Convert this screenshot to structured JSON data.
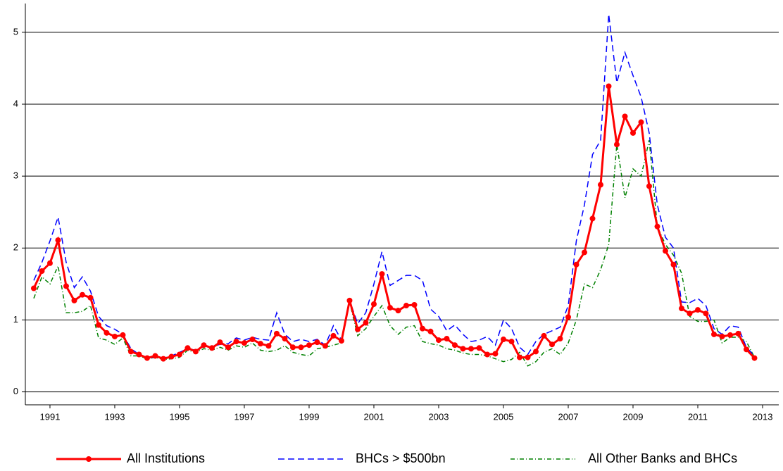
{
  "chart_data": {
    "type": "line",
    "x": [
      1990.5,
      1990.75,
      1991,
      1991.25,
      1991.5,
      1991.75,
      1992,
      1992.25,
      1992.5,
      1992.75,
      1993,
      1993.25,
      1993.5,
      1993.75,
      1994,
      1994.25,
      1994.5,
      1994.75,
      1995,
      1995.25,
      1995.5,
      1995.75,
      1996,
      1996.25,
      1996.5,
      1996.75,
      1997,
      1997.25,
      1997.5,
      1997.75,
      1998,
      1998.25,
      1998.5,
      1998.75,
      1999,
      1999.25,
      1999.5,
      1999.75,
      2000,
      2000.25,
      2000.5,
      2000.75,
      2001,
      2001.25,
      2001.5,
      2001.75,
      2002,
      2002.25,
      2002.5,
      2002.75,
      2003,
      2003.25,
      2003.5,
      2003.75,
      2004,
      2004.25,
      2004.5,
      2004.75,
      2005,
      2005.25,
      2005.5,
      2005.75,
      2006,
      2006.25,
      2006.5,
      2006.75,
      2007,
      2007.25,
      2007.5,
      2007.75,
      2008,
      2008.25,
      2008.5,
      2008.75,
      2009,
      2009.25,
      2009.5,
      2009.75,
      2010,
      2010.25,
      2010.5,
      2010.75,
      2011,
      2011.25,
      2011.5,
      2011.75,
      2012,
      2012.25,
      2012.5,
      2012.75
    ],
    "series": [
      {
        "name": "All Institutions",
        "color": "#ff0000",
        "style": "solid-marker",
        "values": [
          1.44,
          1.68,
          1.79,
          2.11,
          1.47,
          1.27,
          1.35,
          1.31,
          0.93,
          0.82,
          0.77,
          0.79,
          0.56,
          0.52,
          0.47,
          0.5,
          0.46,
          0.49,
          0.52,
          0.61,
          0.56,
          0.65,
          0.61,
          0.69,
          0.62,
          0.7,
          0.68,
          0.73,
          0.67,
          0.64,
          0.81,
          0.74,
          0.62,
          0.62,
          0.65,
          0.69,
          0.64,
          0.78,
          0.71,
          1.27,
          0.87,
          0.96,
          1.22,
          1.64,
          1.17,
          1.13,
          1.2,
          1.21,
          0.88,
          0.84,
          0.72,
          0.74,
          0.65,
          0.6,
          0.6,
          0.61,
          0.52,
          0.53,
          0.73,
          0.7,
          0.48,
          0.48,
          0.56,
          0.78,
          0.66,
          0.74,
          1.04,
          1.77,
          1.94,
          2.41,
          2.88,
          4.25,
          3.44,
          3.83,
          3.6,
          3.75,
          2.86,
          2.3,
          1.96,
          1.77,
          1.16,
          1.09,
          1.14,
          1.09,
          0.8,
          0.77,
          0.79,
          0.81,
          0.59,
          0.47
        ]
      },
      {
        "name": "BHCs > $500bn",
        "color": "#0000ff",
        "style": "dashed",
        "values": [
          1.55,
          1.8,
          2.1,
          2.43,
          1.8,
          1.45,
          1.6,
          1.4,
          1.05,
          0.92,
          0.87,
          0.8,
          0.6,
          0.52,
          0.47,
          0.48,
          0.47,
          0.5,
          0.55,
          0.6,
          0.58,
          0.63,
          0.63,
          0.66,
          0.67,
          0.75,
          0.72,
          0.76,
          0.73,
          0.72,
          1.1,
          0.8,
          0.7,
          0.73,
          0.7,
          0.73,
          0.65,
          0.92,
          0.72,
          1.27,
          0.95,
          1.1,
          1.5,
          1.95,
          1.48,
          1.55,
          1.62,
          1.62,
          1.55,
          1.15,
          1.05,
          0.85,
          0.93,
          0.8,
          0.7,
          0.72,
          0.77,
          0.65,
          1.0,
          0.88,
          0.62,
          0.52,
          0.7,
          0.8,
          0.85,
          0.9,
          1.2,
          2.1,
          2.6,
          3.3,
          3.5,
          5.25,
          4.3,
          4.72,
          4.4,
          4.1,
          3.6,
          2.6,
          2.15,
          2.0,
          1.25,
          1.24,
          1.3,
          1.2,
          0.88,
          0.8,
          0.92,
          0.9,
          0.62,
          0.5
        ]
      },
      {
        "name": "All Other Banks and BHCs",
        "color": "#008000",
        "style": "dashdot",
        "values": [
          1.3,
          1.6,
          1.5,
          1.75,
          1.1,
          1.1,
          1.12,
          1.2,
          0.75,
          0.72,
          0.66,
          0.75,
          0.5,
          0.5,
          0.46,
          0.48,
          0.45,
          0.46,
          0.48,
          0.58,
          0.55,
          0.6,
          0.58,
          0.62,
          0.58,
          0.64,
          0.62,
          0.68,
          0.58,
          0.56,
          0.58,
          0.64,
          0.55,
          0.52,
          0.5,
          0.6,
          0.62,
          0.65,
          0.68,
          1.25,
          0.78,
          0.88,
          1.05,
          1.2,
          0.92,
          0.8,
          0.9,
          0.92,
          0.7,
          0.67,
          0.65,
          0.6,
          0.58,
          0.54,
          0.52,
          0.52,
          0.5,
          0.46,
          0.42,
          0.45,
          0.55,
          0.36,
          0.42,
          0.55,
          0.6,
          0.52,
          0.68,
          1.0,
          1.5,
          1.45,
          1.7,
          2.05,
          3.45,
          2.7,
          3.1,
          3.0,
          3.5,
          2.3,
          2.05,
          1.9,
          1.65,
          1.05,
          0.98,
          0.98,
          1.0,
          0.68,
          0.76,
          0.76,
          0.7,
          0.48
        ]
      }
    ],
    "xlim": [
      1990.24,
      2013.5
    ],
    "xticks": [
      1991,
      1993,
      1995,
      1997,
      1999,
      2001,
      2003,
      2005,
      2007,
      2009,
      2011,
      2013
    ],
    "ylim": [
      -0.18,
      5.4
    ],
    "yticks": [
      0,
      1,
      2,
      3,
      4,
      5
    ],
    "grid": true,
    "legend": "bottom"
  }
}
